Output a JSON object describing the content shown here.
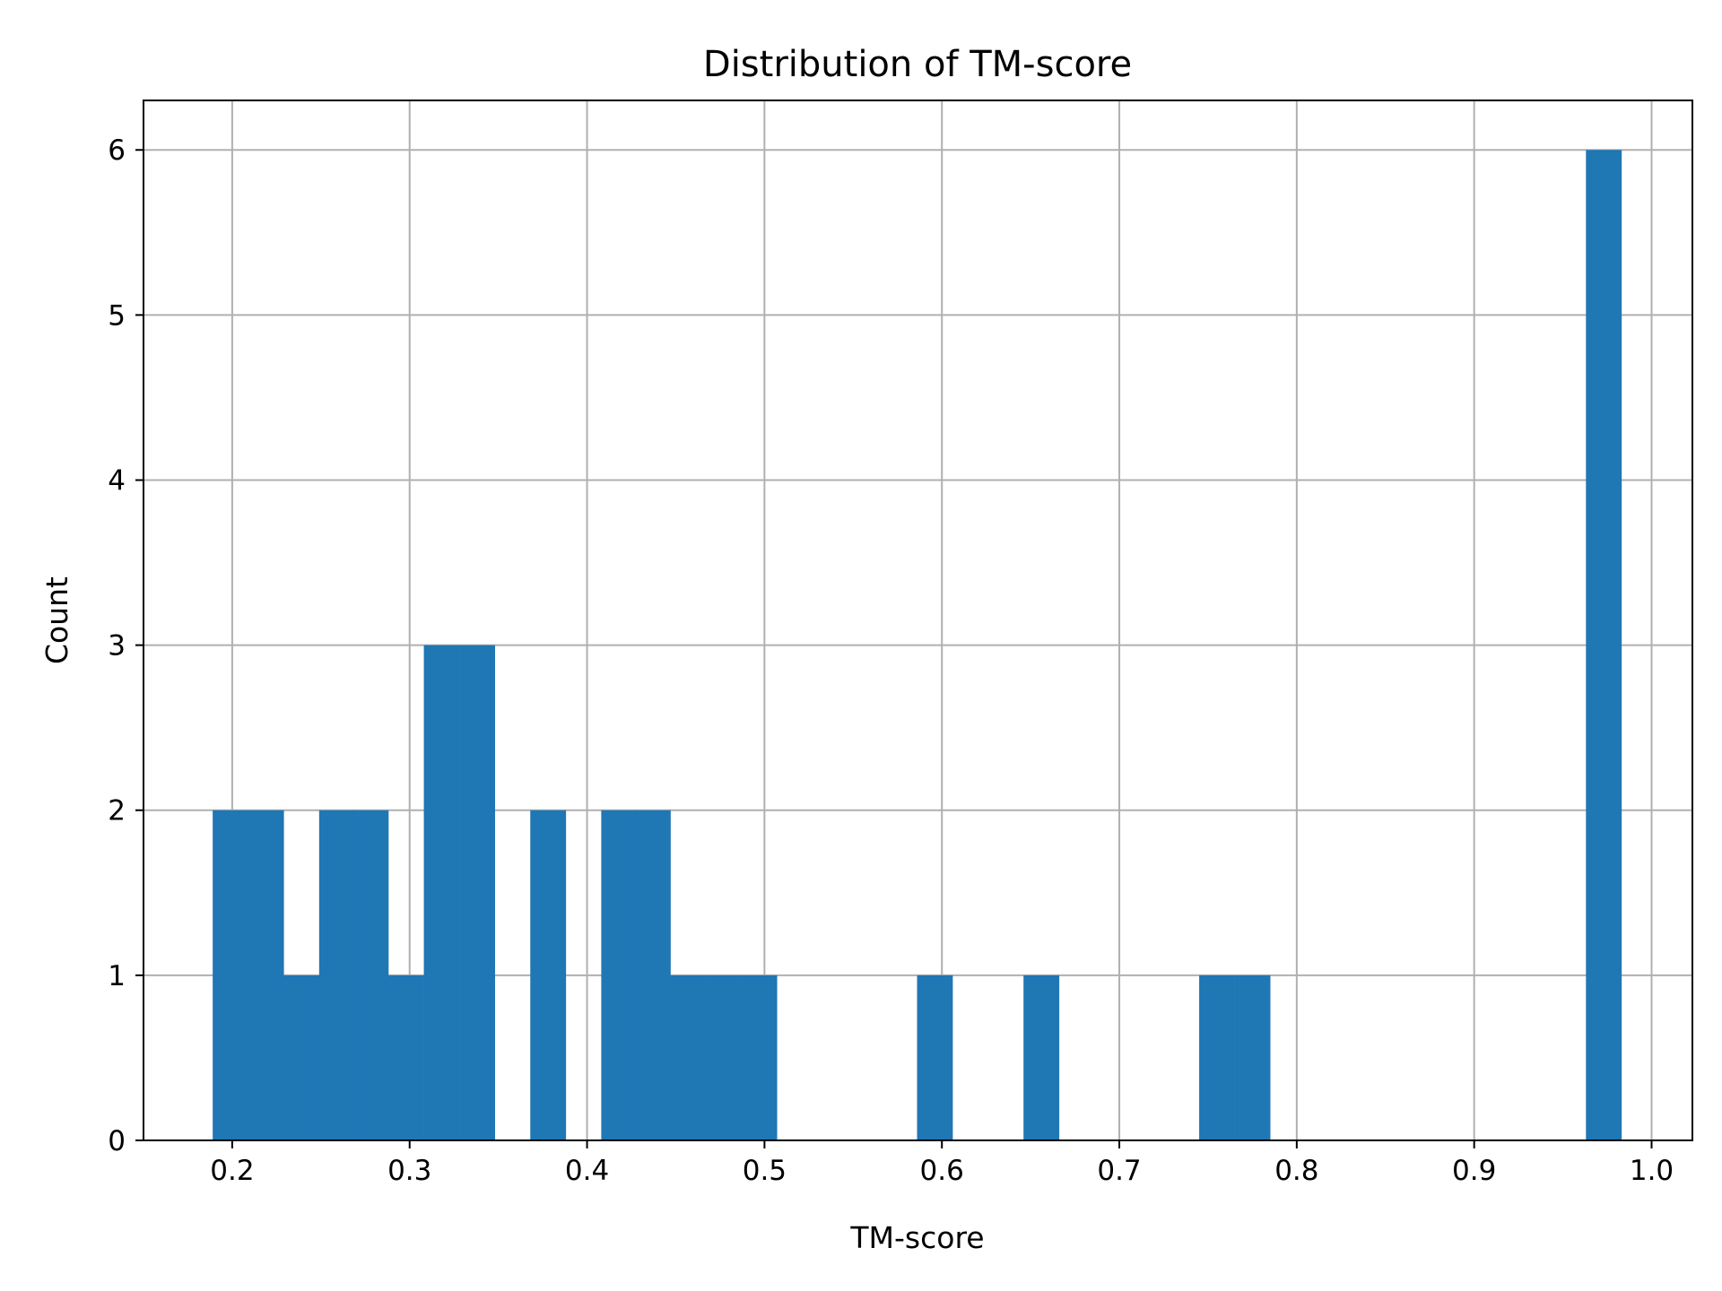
{
  "chart_data": {
    "type": "bar",
    "title": "Distribution of TM-score",
    "xlabel": "TM-score",
    "ylabel": "Count",
    "xlim": [
      0.15,
      1.023
    ],
    "ylim": [
      0,
      6.3
    ],
    "xticks": [
      "0.2",
      "0.3",
      "0.4",
      "0.5",
      "0.6",
      "0.7",
      "0.8",
      "0.9",
      "1.0"
    ],
    "yticks": [
      "0",
      "1",
      "2",
      "3",
      "4",
      "5",
      "6"
    ],
    "grid": true,
    "legend": "none",
    "bar_color": "#1f77b4",
    "bin_width": 0.01985,
    "bins": [
      {
        "start": 0.189,
        "count": 2
      },
      {
        "start": 0.209,
        "count": 2
      },
      {
        "start": 0.229,
        "count": 1
      },
      {
        "start": 0.249,
        "count": 2
      },
      {
        "start": 0.268,
        "count": 2
      },
      {
        "start": 0.288,
        "count": 1
      },
      {
        "start": 0.308,
        "count": 3
      },
      {
        "start": 0.328,
        "count": 3
      },
      {
        "start": 0.368,
        "count": 2
      },
      {
        "start": 0.408,
        "count": 2
      },
      {
        "start": 0.427,
        "count": 2
      },
      {
        "start": 0.447,
        "count": 1
      },
      {
        "start": 0.467,
        "count": 1
      },
      {
        "start": 0.487,
        "count": 1
      },
      {
        "start": 0.586,
        "count": 1
      },
      {
        "start": 0.646,
        "count": 1
      },
      {
        "start": 0.745,
        "count": 1
      },
      {
        "start": 0.765,
        "count": 1
      },
      {
        "start": 0.963,
        "count": 6
      }
    ]
  }
}
